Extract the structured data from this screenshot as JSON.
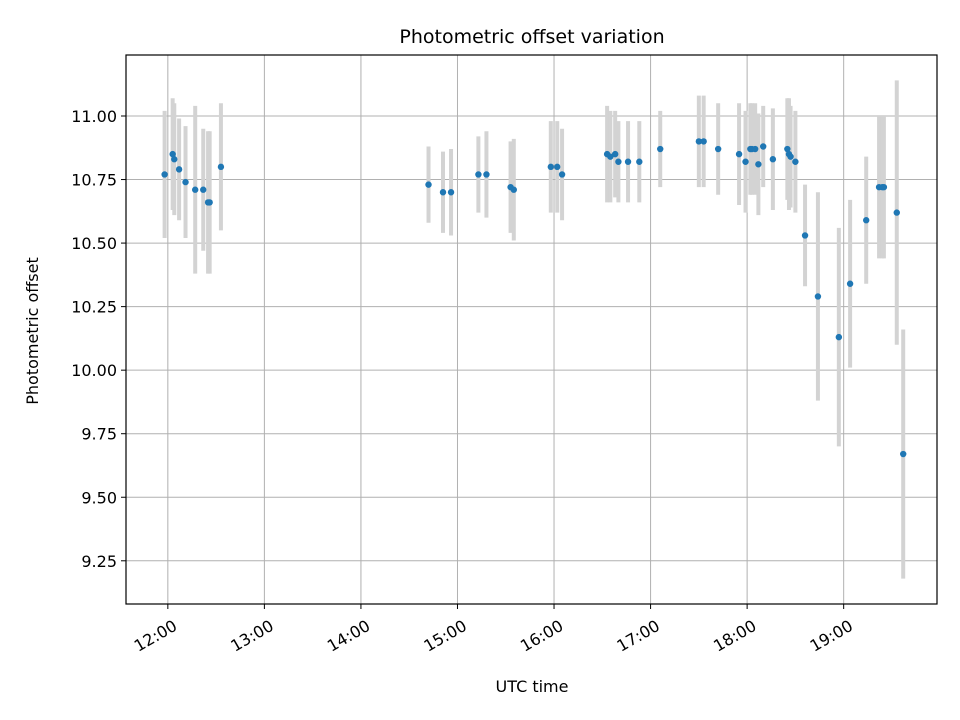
{
  "chart_data": {
    "type": "scatter",
    "title": "Photometric offset variation",
    "xlabel": "UTC time",
    "ylabel": "Photometric offset",
    "x_ticks": [
      "12:00",
      "13:00",
      "14:00",
      "15:00",
      "16:00",
      "17:00",
      "18:00",
      "19:00"
    ],
    "y_ticks": [
      "9.25",
      "9.50",
      "9.75",
      "10.00",
      "10.25",
      "10.50",
      "10.75",
      "11.00"
    ],
    "xlim": [
      "11:34",
      "19:58"
    ],
    "ylim": [
      9.08,
      11.24
    ],
    "grid": true,
    "point_color": "#1f77b4",
    "errorbar_color": "#d3d3d3",
    "x": [
      "11:58",
      "12:03",
      "12:04",
      "12:07",
      "12:11",
      "12:17",
      "12:22",
      "12:25",
      "12:26",
      "12:33",
      "14:42",
      "14:51",
      "14:56",
      "15:13",
      "15:18",
      "15:33",
      "15:35",
      "15:58",
      "16:02",
      "16:05",
      "16:33",
      "16:35",
      "16:38",
      "16:40",
      "16:46",
      "16:53",
      "17:06",
      "17:30",
      "17:33",
      "17:42",
      "17:55",
      "17:59",
      "18:02",
      "18:03",
      "18:05",
      "18:07",
      "18:10",
      "18:16",
      "18:25",
      "18:26",
      "18:27",
      "18:30",
      "18:36",
      "18:44",
      "18:57",
      "19:04",
      "19:14",
      "19:22",
      "19:24",
      "19:25",
      "19:33",
      "19:37"
    ],
    "y": [
      10.77,
      10.85,
      10.83,
      10.79,
      10.74,
      10.71,
      10.71,
      10.66,
      10.66,
      10.8,
      10.73,
      10.7,
      10.7,
      10.77,
      10.77,
      10.72,
      10.71,
      10.8,
      10.8,
      10.77,
      10.85,
      10.84,
      10.85,
      10.82,
      10.82,
      10.82,
      10.87,
      10.9,
      10.9,
      10.87,
      10.85,
      10.82,
      10.87,
      10.87,
      10.87,
      10.81,
      10.88,
      10.83,
      10.87,
      10.85,
      10.84,
      10.82,
      10.53,
      10.29,
      10.13,
      10.34,
      10.59,
      10.72,
      10.72,
      10.72,
      10.62,
      9.67
    ],
    "err": [
      0.25,
      0.22,
      0.22,
      0.2,
      0.22,
      0.33,
      0.24,
      0.28,
      0.28,
      0.25,
      0.15,
      0.16,
      0.17,
      0.15,
      0.17,
      0.18,
      0.2,
      0.18,
      0.18,
      0.18,
      0.19,
      0.18,
      0.17,
      0.16,
      0.16,
      0.16,
      0.15,
      0.18,
      0.18,
      0.18,
      0.2,
      0.2,
      0.18,
      0.18,
      0.18,
      0.2,
      0.16,
      0.2,
      0.2,
      0.22,
      0.2,
      0.2,
      0.2,
      0.41,
      0.43,
      0.33,
      0.25,
      0.28,
      0.28,
      0.28,
      0.52,
      0.49
    ]
  }
}
